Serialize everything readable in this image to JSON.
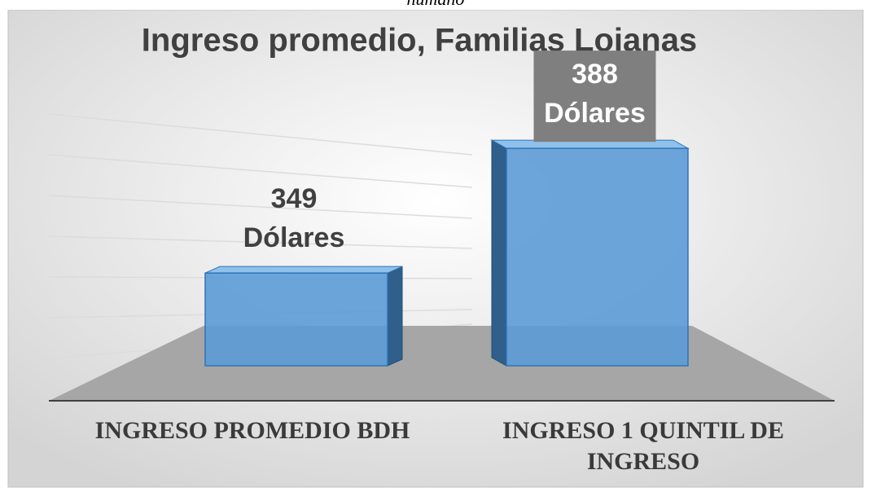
{
  "header_fragment": "humano",
  "chart_data": {
    "type": "bar3d",
    "title": "Ingreso promedio, Familias Lojanas",
    "categories": [
      "INGRESO PROMEDIO BDH",
      "INGRESO 1 QUINTIL DE INGRESO"
    ],
    "values": [
      349,
      388
    ],
    "value_labels": [
      "349 Dólares",
      "388 Dólares"
    ],
    "color": "#5b9bd5",
    "ylim": [
      320,
      400
    ]
  }
}
